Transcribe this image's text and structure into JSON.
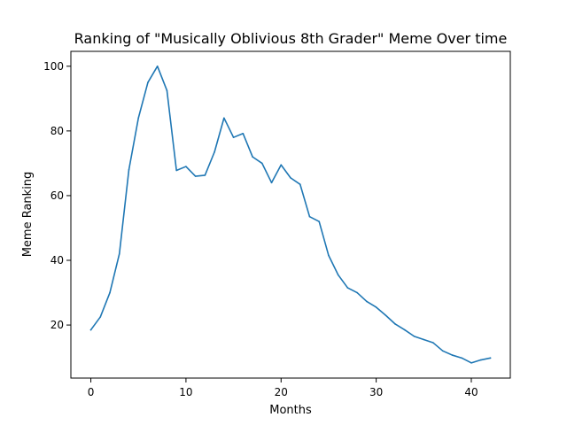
{
  "chart_data": {
    "type": "line",
    "title": "Ranking of \"Musically Oblivious 8th Grader\" Meme Over time",
    "xlabel": "Months",
    "ylabel": "Meme Ranking",
    "xlim": [
      -2.1,
      44.1
    ],
    "ylim": [
      3.6,
      104.6
    ],
    "xticks": [
      0,
      10,
      20,
      30,
      40
    ],
    "yticks": [
      20,
      40,
      60,
      80,
      100
    ],
    "grid": false,
    "series": [
      {
        "color": "#1f77b4",
        "x": [
          0,
          1,
          2,
          3,
          4,
          5,
          6,
          7,
          8,
          9,
          10,
          11,
          12,
          13,
          14,
          15,
          16,
          17,
          18,
          19,
          20,
          21,
          22,
          23,
          24,
          25,
          26,
          27,
          28,
          29,
          30,
          31,
          32,
          33,
          34,
          35,
          36,
          37,
          38,
          39,
          40,
          41,
          42
        ],
        "y": [
          18.5,
          22.5,
          30,
          42,
          68,
          84,
          95,
          100,
          92.5,
          67.8,
          69,
          66,
          66.3,
          73.5,
          84,
          78,
          79.2,
          72,
          70,
          64,
          69.5,
          65.5,
          63.5,
          53.5,
          52,
          41.5,
          35.5,
          31.5,
          30,
          27.3,
          25.5,
          23,
          20.3,
          18.5,
          16.5,
          15.5,
          14.5,
          12,
          10.7,
          9.8,
          8.3,
          9.2,
          9.8
        ]
      }
    ]
  }
}
